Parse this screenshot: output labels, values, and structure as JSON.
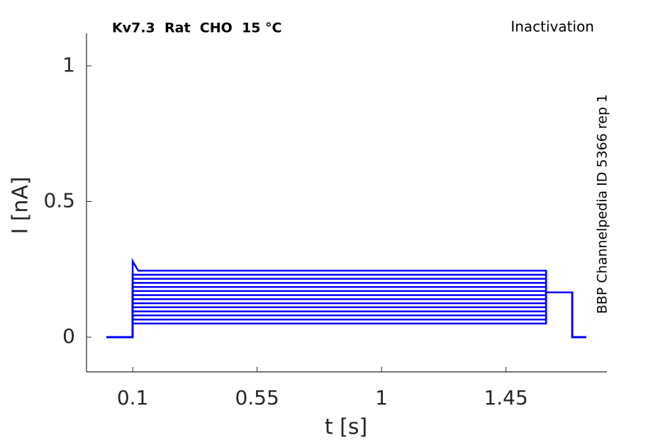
{
  "chart_data": {
    "type": "line",
    "title": "Kv7.3  Rat  CHO  15 °C",
    "annotation": "Inactivation",
    "side_note": "BBP Channelpedia ID 5366 rep 1",
    "xlabel": "t [s]",
    "ylabel": "I [nA]",
    "xlim": [
      -0.067,
      1.815
    ],
    "ylim": [
      -0.128,
      1.12
    ],
    "xticks": [
      0.1,
      0.55,
      1,
      1.45
    ],
    "yticks": [
      0,
      0.5,
      1
    ],
    "color": "#0000ff",
    "x": [
      0.005,
      0.1,
      0.1,
      0.12,
      1.595,
      1.595,
      1.69,
      1.69,
      1.74
    ],
    "series": [
      {
        "values": [
          0,
          0,
          0.05,
          0.05,
          0.05,
          0.165,
          0.165,
          0,
          0
        ]
      },
      {
        "values": [
          0,
          0,
          0.065,
          0.065,
          0.065,
          0.165,
          0.165,
          0,
          0
        ]
      },
      {
        "values": [
          0,
          0,
          0.08,
          0.08,
          0.08,
          0.165,
          0.165,
          0,
          0
        ]
      },
      {
        "values": [
          0,
          0,
          0.095,
          0.095,
          0.095,
          0.165,
          0.165,
          0,
          0
        ]
      },
      {
        "values": [
          0,
          0,
          0.11,
          0.11,
          0.11,
          0.165,
          0.165,
          0,
          0
        ]
      },
      {
        "values": [
          0,
          0,
          0.125,
          0.125,
          0.125,
          0.165,
          0.165,
          0,
          0
        ]
      },
      {
        "values": [
          0,
          0,
          0.14,
          0.14,
          0.14,
          0.165,
          0.165,
          0,
          0
        ]
      },
      {
        "values": [
          0,
          0,
          0.155,
          0.155,
          0.155,
          0.165,
          0.165,
          0,
          0
        ]
      },
      {
        "values": [
          0,
          0,
          0.17,
          0.17,
          0.17,
          0.165,
          0.165,
          0,
          0
        ]
      },
      {
        "values": [
          0,
          0,
          0.185,
          0.185,
          0.185,
          0.165,
          0.165,
          0,
          0
        ]
      },
      {
        "values": [
          0,
          0,
          0.2,
          0.2,
          0.2,
          0.165,
          0.165,
          0,
          0
        ]
      },
      {
        "values": [
          0,
          0,
          0.215,
          0.215,
          0.215,
          0.165,
          0.165,
          0,
          0
        ]
      },
      {
        "values": [
          0,
          0,
          0.23,
          0.23,
          0.23,
          0.165,
          0.165,
          0,
          0
        ]
      },
      {
        "values": [
          0,
          0,
          0.28,
          0.245,
          0.245,
          0.165,
          0.165,
          0,
          0
        ]
      }
    ]
  }
}
